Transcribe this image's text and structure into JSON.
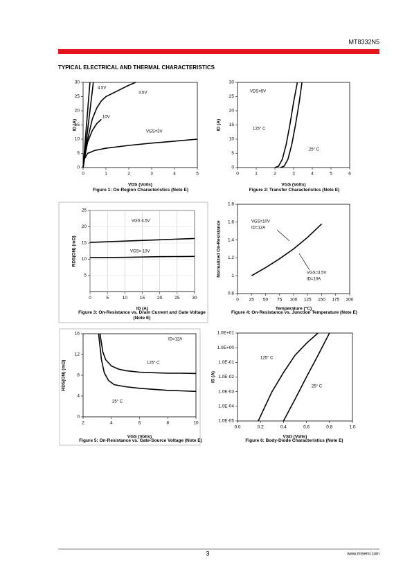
{
  "header": {
    "part": "MT8332N5"
  },
  "section_title": "TYPICAL ELECTRICAL AND THERMAL CHARACTERISTICS",
  "footer": {
    "page": "3",
    "url": "www.mtsemi.com"
  },
  "chart_data": [
    {
      "type": "line",
      "title": "Figure 1: On-Region Characteristics (Note E)",
      "x_label": "VDS (Volts)",
      "y_label": "ID (A)",
      "xlim": [
        0,
        5
      ],
      "ylim": [
        0,
        30
      ],
      "xticks": [
        0,
        1,
        2,
        3,
        4,
        5
      ],
      "yticks": [
        0,
        5,
        10,
        15,
        20,
        25,
        30
      ],
      "grid": false,
      "color": "#000000",
      "annotations": [
        "4.5V",
        "3.5V",
        "10V",
        "VGS=3V"
      ],
      "series": [
        {
          "x": [
            0,
            0.1,
            0.2,
            0.3
          ],
          "values": [
            0,
            10,
            20,
            30
          ]
        },
        {
          "x": [
            0,
            0.15,
            0.3,
            0.45
          ],
          "values": [
            0,
            10,
            20,
            30
          ]
        },
        {
          "x": [
            0,
            0.2,
            0.4,
            0.6,
            0.8,
            1,
            1.5,
            2,
            2.3
          ],
          "values": [
            0,
            10,
            17,
            21,
            23.5,
            25,
            27,
            29,
            30
          ]
        },
        {
          "x": [
            0,
            0.1,
            0.2,
            0.4,
            0.6,
            0.8
          ],
          "values": [
            0,
            5,
            9,
            13,
            15.5,
            17
          ]
        },
        {
          "x": [
            0,
            0.05,
            0.2,
            0.5,
            1,
            2,
            3,
            4,
            5
          ],
          "values": [
            0,
            3,
            5,
            6,
            6.8,
            7.8,
            8.6,
            9.3,
            10
          ]
        }
      ]
    },
    {
      "type": "line",
      "title": "Figure 2: Transfer Characteristics (Note E)",
      "x_label": "VGS (Volts)",
      "y_label": "ID (A)",
      "xlim": [
        0,
        6
      ],
      "ylim": [
        0,
        30
      ],
      "xticks": [
        0,
        1,
        2,
        3,
        4,
        5,
        6
      ],
      "yticks": [
        0,
        5,
        10,
        15,
        20,
        25,
        30
      ],
      "grid": false,
      "color": "#000000",
      "annotations": [
        "VDS=5V",
        "125° C",
        "25° C"
      ],
      "series": [
        {
          "x": [
            2,
            2.2,
            2.4,
            2.6,
            2.8,
            3,
            3.2
          ],
          "values": [
            0,
            0.5,
            3,
            8,
            15,
            23,
            30
          ]
        },
        {
          "x": [
            2.3,
            2.5,
            2.7,
            2.9,
            3.1,
            3.3,
            3.45
          ],
          "values": [
            0,
            0.5,
            3,
            8,
            15,
            23,
            30
          ]
        }
      ]
    },
    {
      "type": "line",
      "title": "Figure 3: On-Resistance vs. Drain Current and Gate Voltage (Note E)",
      "x_label": "ID (A)",
      "y_label": "RDS(ON) (mΩ)",
      "xlim": [
        0,
        30
      ],
      "ylim": [
        0,
        25
      ],
      "xticks": [
        0,
        5,
        10,
        15,
        20,
        25,
        30
      ],
      "yticks": [
        5,
        10,
        15,
        20,
        25
      ],
      "grid": true,
      "color": "#000000",
      "annotations": [
        "VGS 4.5V",
        "VGS= 10V"
      ],
      "series": [
        {
          "x": [
            0,
            10,
            20,
            30
          ],
          "values": [
            15.2,
            15.6,
            16,
            16.4
          ]
        },
        {
          "x": [
            0,
            10,
            20,
            30
          ],
          "values": [
            10.5,
            10.6,
            10.8,
            10.9
          ]
        }
      ]
    },
    {
      "type": "line",
      "title": "Figure 4: On-Resistance vs. Junction Temperature (Note E)",
      "x_label": "Temperature (°C)",
      "y_label": "Normalized On-Resistance",
      "xlim": [
        0,
        200
      ],
      "ylim": [
        0.8,
        1.8
      ],
      "xticks": [
        0,
        25,
        50,
        75,
        100,
        125,
        150,
        175,
        200
      ],
      "yticks": [
        0.8,
        1,
        1.2,
        1.4,
        1.6,
        1.8
      ],
      "grid": false,
      "color": "#000000",
      "annotations": [
        "VGS=10V",
        "ID=12A",
        "VGS=4.5V",
        "ID=10A"
      ],
      "series": [
        {
          "x": [
            25,
            50,
            75,
            100,
            125,
            150
          ],
          "values": [
            1,
            1.09,
            1.19,
            1.3,
            1.43,
            1.58
          ]
        }
      ]
    },
    {
      "type": "line",
      "title": "Figure 5: On-Resistance vs. Gate-Source Voltage (Note E)",
      "x_label": "VGS (Volts)",
      "y_label": "RDS(ON) (mΩ)",
      "xlim": [
        2,
        10
      ],
      "ylim": [
        0,
        16
      ],
      "xticks": [
        2,
        4,
        6,
        8,
        10
      ],
      "yticks": [
        0,
        4,
        8,
        12,
        16
      ],
      "grid": false,
      "color": "#000000",
      "annotations": [
        "ID=12A",
        "125° C",
        "25° C"
      ],
      "series": [
        {
          "x": [
            3.2,
            3.4,
            3.6,
            4,
            4.5,
            5,
            6,
            7,
            8,
            9,
            10
          ],
          "values": [
            16,
            12.5,
            11,
            9.8,
            9.2,
            8.9,
            8.6,
            8.5,
            8.4,
            8.4,
            8.35
          ]
        },
        {
          "x": [
            3.1,
            3.3,
            3.5,
            3.8,
            4.2,
            5,
            6,
            7,
            8,
            9,
            10
          ],
          "values": [
            16,
            11,
            8.5,
            7,
            6.2,
            5.8,
            5.5,
            5.3,
            5.1,
            5,
            4.9
          ]
        }
      ]
    },
    {
      "type": "line",
      "title": "Figure 6: Body-Diode Characteristics (Note E)",
      "x_label": "VSD (Volts)",
      "y_label": "IS (A)",
      "log_y": true,
      "xlim": [
        0,
        1
      ],
      "ylim": [
        1e-05,
        10
      ],
      "xticks": [
        {
          "value": 0,
          "label": "0.0"
        },
        {
          "value": 0.2,
          "label": "0.2"
        },
        {
          "value": 0.4,
          "label": "0.4"
        },
        {
          "value": 0.6,
          "label": "0.6"
        },
        {
          "value": 0.8,
          "label": "0.8"
        },
        {
          "value": 1,
          "label": "1.0"
        }
      ],
      "yticks": [
        {
          "value": 1e-05,
          "label": "1.0E-05"
        },
        {
          "value": 0.0001,
          "label": "1.0E-04"
        },
        {
          "value": 0.001,
          "label": "1.0E-03"
        },
        {
          "value": 0.01,
          "label": "1.0E-02"
        },
        {
          "value": 0.1,
          "label": "1.0E-01"
        },
        {
          "value": 1,
          "label": "1.0E+00"
        },
        {
          "value": 10,
          "label": "1.0E+01"
        }
      ],
      "grid": false,
      "color": "#000000",
      "annotations": [
        "125° C",
        "25° C"
      ],
      "series": [
        {
          "x": [
            0.18,
            0.3,
            0.4,
            0.5,
            0.6,
            0.7
          ],
          "values": [
            1e-05,
            0.001,
            0.02,
            0.3,
            2,
            10
          ]
        },
        {
          "x": [
            0.4,
            0.5,
            0.6,
            0.7,
            0.8
          ],
          "values": [
            1e-05,
            0.0003,
            0.01,
            0.3,
            10
          ]
        }
      ]
    }
  ]
}
